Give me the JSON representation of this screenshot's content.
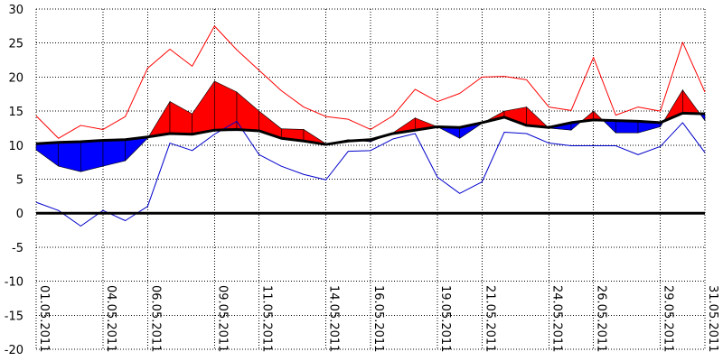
{
  "chart_data": {
    "type": "line",
    "title": "",
    "xlabel": "",
    "ylabel": "",
    "ylim": [
      -20,
      30
    ],
    "y_ticks": [
      30,
      25,
      20,
      15,
      10,
      5,
      0,
      -5,
      -10,
      -15,
      -20
    ],
    "grid": true,
    "x": [
      "01.05.2011",
      "02.05.2011",
      "03.05.2011",
      "04.05.2011",
      "05.05.2011",
      "06.05.2011",
      "07.05.2011",
      "08.05.2011",
      "09.05.2011",
      "10.05.2011",
      "11.05.2011",
      "12.05.2011",
      "13.05.2011",
      "14.05.2011",
      "15.05.2011",
      "16.05.2011",
      "17.05.2011",
      "18.05.2011",
      "19.05.2011",
      "20.05.2011",
      "21.05.2011",
      "22.05.2011",
      "23.05.2011",
      "24.05.2011",
      "25.05.2011",
      "26.05.2011",
      "27.05.2011",
      "28.05.2011",
      "29.05.2011",
      "30.05.2011",
      "31.05.2011"
    ],
    "x_tick_labels": [
      "01.05.2011",
      "04.05.2011",
      "06.05.2011",
      "09.05.2011",
      "11.05.2011",
      "14.05.2011",
      "16.05.2011",
      "19.05.2011",
      "21.05.2011",
      "24.05.2011",
      "26.05.2011",
      "29.05.2011",
      "31.05.2011"
    ],
    "series": [
      {
        "color": "#ff0000",
        "values": [
          14.3,
          11.0,
          12.9,
          12.3,
          14.2,
          21.3,
          24.1,
          21.6,
          27.5,
          24.0,
          21.0,
          18.0,
          15.6,
          14.2,
          13.8,
          12.3,
          14.3,
          18.2,
          16.4,
          17.6,
          20.0,
          20.1,
          19.6,
          15.6,
          15.1,
          22.9,
          14.4,
          15.6,
          15.0,
          25.1,
          17.8
        ]
      },
      {
        "color": "#0000cc",
        "values": [
          1.6,
          0.4,
          -1.9,
          0.4,
          -1.1,
          1.0,
          10.3,
          9.2,
          11.6,
          13.5,
          8.6,
          6.9,
          5.7,
          4.9,
          9.1,
          9.2,
          10.9,
          11.7,
          5.3,
          2.9,
          4.6,
          11.9,
          11.7,
          10.3,
          9.9,
          9.9,
          9.9,
          8.6,
          9.8,
          13.3,
          8.9
        ]
      },
      {
        "color": "#000000",
        "values": [
          10.2,
          10.4,
          10.5,
          10.7,
          10.8,
          11.2,
          11.7,
          11.6,
          12.2,
          12.3,
          12.1,
          11.0,
          10.6,
          10.1,
          10.6,
          10.8,
          11.7,
          12.2,
          12.7,
          12.6,
          13.3,
          14.1,
          12.9,
          12.6,
          13.3,
          13.7,
          13.6,
          13.5,
          13.3,
          14.7,
          14.6
        ]
      },
      {
        "color": "#000000",
        "values": [
          9.3,
          6.9,
          6.1,
          6.9,
          7.7,
          11.0,
          16.4,
          14.6,
          19.4,
          17.8,
          15.0,
          12.4,
          12.3,
          10.2,
          10.8,
          10.5,
          11.8,
          14.0,
          12.7,
          11.0,
          13.2,
          15.0,
          15.6,
          12.5,
          12.2,
          15.0,
          11.8,
          11.8,
          12.7,
          18.1,
          13.6
        ]
      },
      {
        "color": "#000000",
        "values": [
          0,
          0,
          0,
          0,
          0,
          0,
          0,
          0,
          0,
          0,
          0,
          0,
          0,
          0,
          0,
          0,
          0,
          0,
          0,
          0,
          0,
          0,
          0,
          0,
          0,
          0,
          0,
          0,
          0,
          0,
          0
        ]
      }
    ],
    "colors": {
      "above": "#ff0000",
      "below": "#0000ff",
      "grid": "#000000",
      "zero_line": "#000000"
    }
  }
}
